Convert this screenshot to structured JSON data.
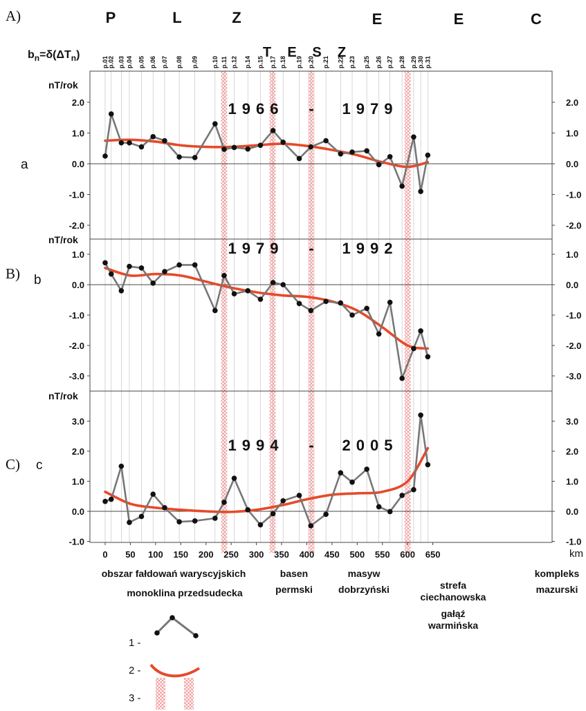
{
  "header": {
    "figure_labels": [
      "A)",
      "B)",
      "C)"
    ],
    "panel_letters": [
      "a",
      "b",
      "c"
    ],
    "pl_letters": [
      "P",
      "L",
      "Z"
    ],
    "ee_letters": [
      "E",
      "E",
      "C"
    ],
    "tesz_letters": [
      "T",
      "E",
      "S",
      "Z"
    ],
    "formula": {
      "b": "b",
      "n": "n",
      "rest": "=δ(ΔT",
      "n2": "n",
      "close": ")"
    }
  },
  "stations": {
    "labels": [
      "p.01",
      "p.02",
      "p.03",
      "p.04",
      "p.05",
      "p.06",
      "p.07",
      "p.08",
      "p.09",
      "p.10",
      "p.11",
      "p.12",
      "p.14",
      "p.15",
      "p.17",
      "p.18",
      "p.19",
      "p.20",
      "p.21",
      "p.22",
      "p.23",
      "p.25",
      "p.26",
      "p.27",
      "p.28",
      "p.29",
      "p.30",
      "p.31"
    ],
    "km": [
      0,
      12,
      32,
      48,
      72,
      95,
      118,
      147,
      178,
      218,
      236,
      256,
      283,
      308,
      333,
      353,
      385,
      408,
      438,
      467,
      490,
      519,
      543,
      565,
      589,
      612,
      626,
      640
    ]
  },
  "tesz_zones_km": [
    [
      230,
      242
    ],
    [
      326,
      338
    ],
    [
      403,
      415
    ],
    [
      594,
      606
    ]
  ],
  "colors": {
    "data_line": "#777777",
    "data_point": "#111111",
    "trend": "#e64a2a",
    "zone": "#f08b8b",
    "frame": "#444444",
    "grid": "#bbbbbb"
  },
  "chart_data": [
    {
      "type": "line",
      "panel": "a",
      "title": "1966 - 1979",
      "title_parts": [
        "1966",
        "-",
        "1979"
      ],
      "ylabel": "nT/rok",
      "ylim": [
        -2.5,
        2.5
      ],
      "yticks": [
        2.0,
        1.0,
        0.0,
        -1.0,
        -2.0
      ],
      "ytick_labels": [
        "2.0",
        "1.0",
        "0.0",
        "-1.0",
        "-2.0"
      ],
      "series": [
        {
          "values": [
            0.25,
            1.62,
            0.68,
            0.68,
            0.55,
            0.88,
            0.75,
            0.22,
            0.2,
            1.3,
            0.47,
            0.53,
            0.48,
            0.6,
            1.08,
            0.7,
            0.17,
            0.55,
            0.75,
            0.32,
            0.38,
            0.42,
            -0.03,
            0.23,
            -0.73,
            0.87,
            -0.9,
            0.28
          ]
        },
        {
          "x": [
            0,
            50,
            100,
            150,
            200,
            250,
            300,
            350,
            400,
            450,
            500,
            550,
            600,
            640
          ],
          "values": [
            0.75,
            0.78,
            0.72,
            0.6,
            0.55,
            0.55,
            0.6,
            0.65,
            0.58,
            0.45,
            0.28,
            0.05,
            -0.1,
            0.05
          ]
        }
      ]
    },
    {
      "type": "line",
      "panel": "b",
      "title": "1979 - 1992",
      "title_parts": [
        "1979",
        "-",
        "1992"
      ],
      "ylabel": "nT/rok",
      "ylim": [
        -3.5,
        1.5
      ],
      "yticks": [
        1.0,
        0.0,
        -1.0,
        -2.0,
        -3.0
      ],
      "ytick_labels": [
        "1.0",
        "0.0",
        "-1.0",
        "-2.0",
        "-3.0"
      ],
      "series": [
        {
          "values": [
            0.72,
            0.35,
            -0.2,
            0.6,
            0.55,
            0.05,
            0.43,
            0.65,
            0.65,
            -0.85,
            0.3,
            -0.3,
            -0.2,
            -0.48,
            0.07,
            0.0,
            -0.62,
            -0.85,
            -0.55,
            -0.6,
            -1.0,
            -0.78,
            -1.62,
            -0.58,
            -3.08,
            -2.1,
            -1.52,
            -2.37
          ]
        },
        {
          "x": [
            0,
            50,
            100,
            150,
            200,
            250,
            300,
            350,
            400,
            450,
            500,
            550,
            600,
            640
          ],
          "values": [
            0.55,
            0.3,
            0.35,
            0.3,
            0.1,
            -0.1,
            -0.25,
            -0.35,
            -0.4,
            -0.55,
            -0.85,
            -1.4,
            -2.0,
            -2.1
          ]
        }
      ]
    },
    {
      "type": "line",
      "panel": "c",
      "title": "1994 - 2005",
      "title_parts": [
        "1994",
        "-",
        "2005"
      ],
      "ylabel": "nT/rok",
      "ylim": [
        -1.0,
        4.0
      ],
      "yticks": [
        3.0,
        2.0,
        1.0,
        0.0,
        -1.0
      ],
      "ytick_labels": [
        "3.0",
        "2.0",
        "1.0",
        "0.0",
        "-1.0"
      ],
      "right_tick_labels": [
        "3.0",
        "2.0",
        "1.0",
        "0.0",
        "-1.0"
      ],
      "xlabel": "km",
      "xticks": [
        0,
        50,
        100,
        150,
        200,
        250,
        300,
        350,
        400,
        450,
        500,
        550,
        600,
        650
      ],
      "xtick_labels": [
        "0",
        "50",
        "100",
        "150",
        "200",
        "250",
        "300",
        "350",
        "400",
        "450",
        "500",
        "550",
        "600",
        "650"
      ],
      "series": [
        {
          "values": [
            0.33,
            0.4,
            1.5,
            -0.37,
            -0.17,
            0.57,
            0.12,
            -0.35,
            -0.32,
            -0.23,
            0.3,
            1.1,
            0.05,
            -0.45,
            -0.08,
            0.35,
            0.53,
            -0.48,
            -0.1,
            1.28,
            0.97,
            1.4,
            0.15,
            -0.01,
            0.53,
            0.72,
            3.2,
            1.55
          ]
        },
        {
          "x": [
            0,
            50,
            100,
            150,
            200,
            250,
            300,
            350,
            400,
            450,
            500,
            550,
            600,
            640
          ],
          "values": [
            0.65,
            0.25,
            0.12,
            0.05,
            0.0,
            -0.02,
            0.05,
            0.2,
            0.4,
            0.55,
            0.6,
            0.65,
            1.0,
            2.1
          ]
        }
      ]
    }
  ],
  "regions": [
    {
      "lines": [
        "obszar fałdowań waryscyjskich"
      ]
    },
    {
      "lines": [
        "monoklina przedsudecka"
      ]
    },
    {
      "lines": [
        "basen",
        "permski"
      ]
    },
    {
      "lines": [
        "masyw",
        "dobrzyński"
      ]
    },
    {
      "lines": [
        "strefa",
        "ciechanowska"
      ]
    },
    {
      "lines": [
        "gałąź",
        "warmińska"
      ]
    },
    {
      "lines": [
        "kompleks",
        "mazurski"
      ]
    }
  ],
  "legend": {
    "items": [
      "1 -",
      "2 -",
      "3 -"
    ]
  }
}
